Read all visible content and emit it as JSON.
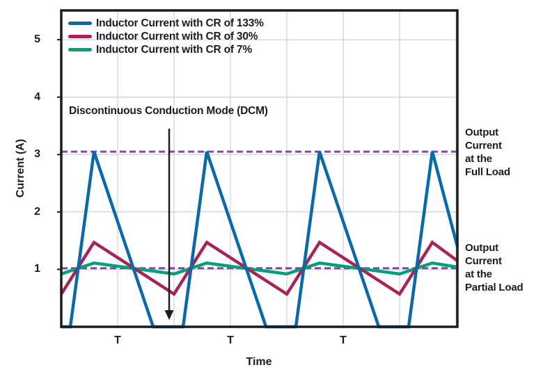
{
  "chart_data": {
    "type": "line",
    "title": "",
    "xlabel": "Time",
    "ylabel": "Current (A)",
    "x_unit": "switching period T",
    "xlim": [
      0,
      3.512
    ],
    "ylim": [
      0,
      5.51
    ],
    "grid": true,
    "legend_position": "top-left-inside",
    "y_ticks": [
      1,
      2,
      3,
      4,
      5
    ],
    "x_gridlines": [
      0.5,
      1,
      1.5,
      2,
      2.5,
      3,
      3.5
    ],
    "x_tick_labels": [
      {
        "t": 0.5,
        "label": "T"
      },
      {
        "t": 1.5,
        "label": "T"
      },
      {
        "t": 2.5,
        "label": "T"
      }
    ],
    "series": [
      {
        "name": "Inductor Current with CR of 133%",
        "color": "#0b69a9",
        "points": [
          [
            0,
            0
          ],
          [
            0.08,
            0
          ],
          [
            0.29,
            3.05
          ],
          [
            0.815,
            0
          ],
          [
            1.08,
            0
          ],
          [
            1.29,
            3.05
          ],
          [
            1.815,
            0
          ],
          [
            2.08,
            0
          ],
          [
            2.29,
            3.05
          ],
          [
            2.815,
            0
          ],
          [
            3.08,
            0
          ],
          [
            3.29,
            3.05
          ],
          [
            3.512,
            1.4
          ]
        ]
      },
      {
        "name": "Inductor Current with CR of 30%",
        "color": "#a62457",
        "points": [
          [
            0,
            0.57
          ],
          [
            0.29,
            1.47
          ],
          [
            1,
            0.57
          ],
          [
            1.29,
            1.47
          ],
          [
            2,
            0.57
          ],
          [
            2.29,
            1.47
          ],
          [
            3,
            0.57
          ],
          [
            3.29,
            1.47
          ],
          [
            3.512,
            1.15
          ]
        ]
      },
      {
        "name": "Inductor Current with CR of 7%",
        "color": "#00a17a",
        "points": [
          [
            0,
            0.92
          ],
          [
            0.29,
            1.11
          ],
          [
            1,
            0.92
          ],
          [
            1.29,
            1.11
          ],
          [
            2,
            0.92
          ],
          [
            2.29,
            1.11
          ],
          [
            3,
            0.92
          ],
          [
            3.29,
            1.11
          ],
          [
            3.512,
            1.04
          ]
        ]
      }
    ],
    "reference_lines": [
      {
        "value": 3.05,
        "style": "dashed",
        "color": "#7a4fa3",
        "label": "Output Current at the Full Load"
      },
      {
        "value": 1.02,
        "style": "dashed",
        "color": "#7a4fa3",
        "label": "Output Current at the Partial Load"
      }
    ],
    "annotation": {
      "text": "Discontinuous Conduction Mode (DCM)",
      "arrow_x_t": 0.957,
      "arrow_y_from": 3.45,
      "arrow_y_to": 0.12
    }
  },
  "side_labels": {
    "full_load": "Output\nCurrent\nat the\nFull Load",
    "partial_load": "Output\nCurrent\nat the\nPartial Load"
  },
  "style_colors": {
    "axis": "#1c1c1e",
    "grid": "#c6c6d2",
    "background": "#ffffff"
  }
}
